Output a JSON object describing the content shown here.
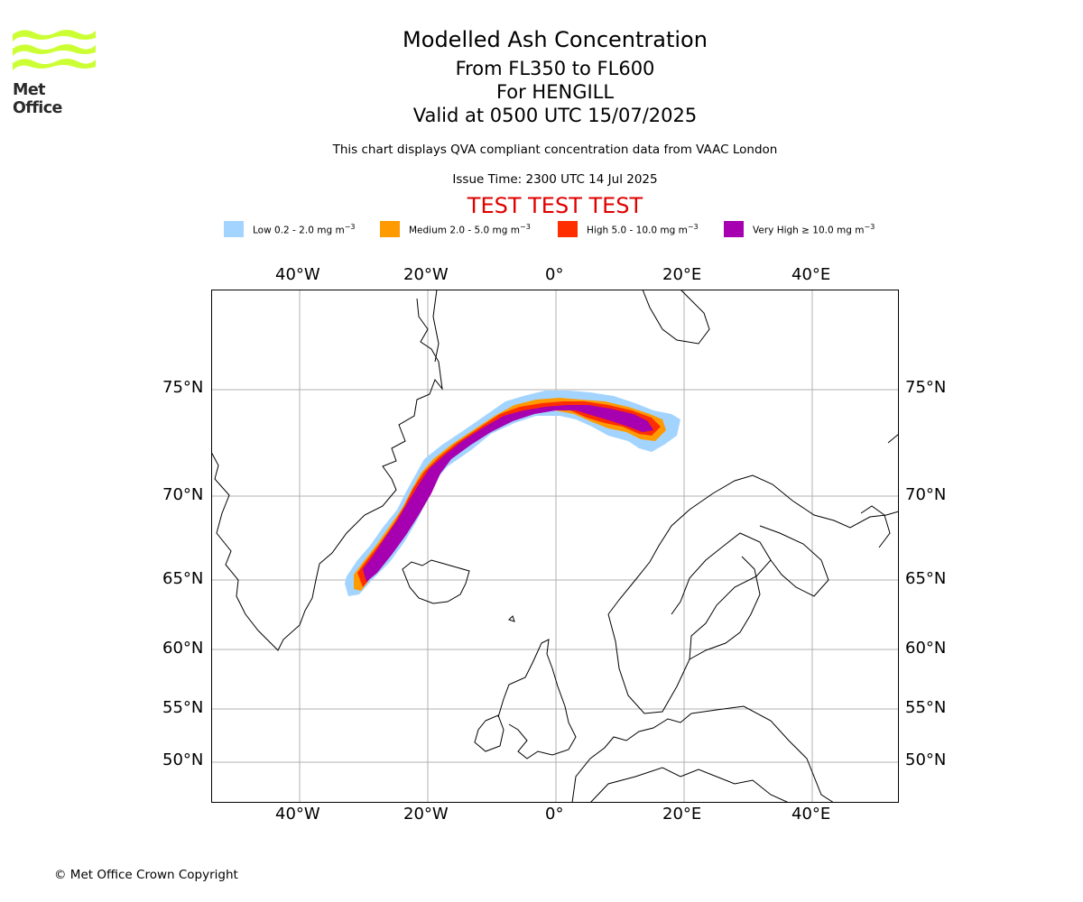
{
  "branding": {
    "logo_text": "Met Office",
    "logo_color": "#ccff33",
    "copyright": "© Met Office Crown Copyright"
  },
  "header": {
    "title": "Modelled Ash Concentration",
    "levels": "From FL350 to FL600",
    "volcano": "For HENGILL",
    "valid": "Valid at 0500 UTC 15/07/2025",
    "subtitle": "This chart displays QVA compliant concentration data from VAAC London",
    "issue_time": "Issue Time: 2300 UTC 14 Jul 2025",
    "test_banner": "TEST TEST TEST"
  },
  "legend": [
    {
      "label": "Low 0.2 - 2.0 mg m",
      "color": "#a3d4ff"
    },
    {
      "label": "Medium 2.0 - 5.0 mg m",
      "color": "#ff9a00"
    },
    {
      "label": "High 5.0 - 10.0 mg m",
      "color": "#ff2e00"
    },
    {
      "label": "Very High  ≥  10.0 mg m",
      "color": "#a600b0"
    }
  ],
  "legend_unit_exponent": "−3",
  "map": {
    "lon_ticks": [
      "40°W",
      "20°W",
      "0°",
      "20°E",
      "40°E"
    ],
    "lat_ticks": [
      "75°N",
      "70°N",
      "65°N",
      "60°N",
      "55°N",
      "50°N"
    ],
    "gridlines": true,
    "ash_plume_extent": {
      "lat_range": [
        63.5,
        74.5
      ],
      "lon_range": [
        -32,
        17
      ]
    }
  }
}
